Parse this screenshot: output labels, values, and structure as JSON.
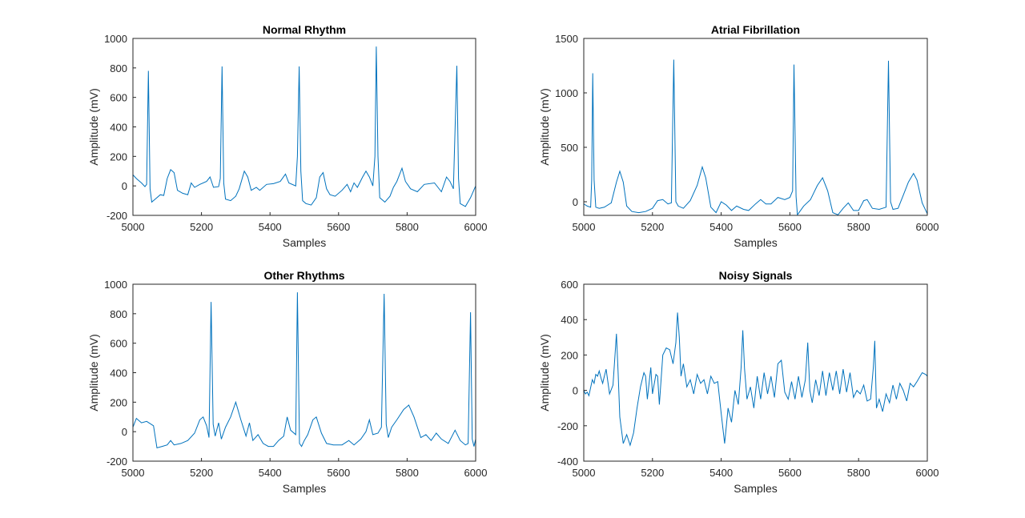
{
  "chart_data": [
    {
      "type": "line",
      "title": "Normal Rhythm",
      "x_label": "Samples",
      "y_label": "Amplitude (mV)",
      "color": "#0072bd",
      "xlim": [
        5000,
        6000
      ],
      "xticks": [
        5000,
        5200,
        5400,
        5600,
        5800,
        6000
      ],
      "ylim": [
        -200,
        1000
      ],
      "yticks": [
        -200,
        0,
        200,
        400,
        600,
        800,
        1000
      ],
      "x": [
        5000,
        5010,
        5025,
        5035,
        5040,
        5045,
        5050,
        5055,
        5065,
        5080,
        5090,
        5100,
        5110,
        5120,
        5130,
        5145,
        5160,
        5170,
        5180,
        5195,
        5215,
        5225,
        5235,
        5250,
        5255,
        5260,
        5265,
        5270,
        5285,
        5300,
        5310,
        5325,
        5335,
        5345,
        5360,
        5370,
        5390,
        5410,
        5430,
        5445,
        5455,
        5475,
        5480,
        5485,
        5490,
        5495,
        5505,
        5520,
        5535,
        5545,
        5555,
        5565,
        5575,
        5590,
        5610,
        5625,
        5635,
        5645,
        5655,
        5670,
        5680,
        5690,
        5700,
        5706,
        5710,
        5715,
        5720,
        5735,
        5750,
        5760,
        5770,
        5785,
        5795,
        5810,
        5830,
        5850,
        5880,
        5900,
        5915,
        5925,
        5935,
        5945,
        5950,
        5955,
        5970,
        5985,
        6000
      ],
      "values": [
        75,
        50,
        20,
        -5,
        10,
        780,
        -20,
        -110,
        -90,
        -60,
        -65,
        50,
        110,
        90,
        -30,
        -50,
        -60,
        20,
        -10,
        10,
        30,
        60,
        -10,
        -5,
        50,
        810,
        20,
        -90,
        -100,
        -70,
        -20,
        100,
        60,
        -30,
        -10,
        -30,
        10,
        15,
        30,
        80,
        20,
        0,
        200,
        810,
        100,
        -100,
        -120,
        -130,
        -80,
        60,
        90,
        -20,
        -60,
        -70,
        -30,
        10,
        -40,
        20,
        -10,
        60,
        100,
        60,
        0,
        200,
        945,
        200,
        -80,
        -110,
        -70,
        -10,
        30,
        120,
        30,
        -20,
        -40,
        10,
        20,
        -40,
        60,
        30,
        -20,
        815,
        50,
        -120,
        -140,
        -80,
        0
      ]
    },
    {
      "type": "line",
      "title": "Atrial Fibrillation",
      "x_label": "Samples",
      "y_label": "Amplitude (mV)",
      "color": "#0072bd",
      "xlim": [
        5000,
        6000
      ],
      "xticks": [
        5000,
        5200,
        5400,
        5600,
        5800,
        6000
      ],
      "ylim": [
        -125,
        1500
      ],
      "yticks": [
        0,
        500,
        1000,
        1500
      ],
      "x": [
        5000,
        5010,
        5020,
        5023,
        5026,
        5030,
        5035,
        5045,
        5060,
        5080,
        5095,
        5105,
        5115,
        5125,
        5140,
        5160,
        5180,
        5200,
        5215,
        5230,
        5245,
        5255,
        5262,
        5268,
        5275,
        5290,
        5310,
        5330,
        5345,
        5355,
        5370,
        5385,
        5400,
        5415,
        5430,
        5445,
        5465,
        5480,
        5500,
        5515,
        5530,
        5545,
        5565,
        5585,
        5600,
        5608,
        5612,
        5618,
        5622,
        5640,
        5660,
        5680,
        5695,
        5710,
        5725,
        5740,
        5755,
        5770,
        5785,
        5800,
        5815,
        5825,
        5840,
        5860,
        5880,
        5887,
        5893,
        5900,
        5915,
        5930,
        5945,
        5960,
        5970,
        5985,
        6000
      ],
      "values": [
        -20,
        -40,
        -50,
        200,
        1180,
        200,
        -50,
        -60,
        -50,
        -10,
        180,
        280,
        180,
        -40,
        -90,
        -100,
        -90,
        -60,
        10,
        20,
        -20,
        -10,
        1305,
        0,
        -40,
        -60,
        10,
        150,
        320,
        220,
        -50,
        -100,
        0,
        -30,
        -80,
        -40,
        -70,
        -80,
        -20,
        20,
        -20,
        -20,
        40,
        20,
        40,
        100,
        1260,
        50,
        -120,
        -40,
        20,
        150,
        220,
        100,
        -100,
        -120,
        -60,
        -10,
        -80,
        -80,
        10,
        20,
        -60,
        -70,
        -50,
        1295,
        0,
        -70,
        -60,
        60,
        180,
        260,
        200,
        -10,
        -110
      ]
    },
    {
      "type": "line",
      "title": "Other Rhythms",
      "x_label": "Samples",
      "y_label": "Amplitude (mV)",
      "color": "#0072bd",
      "xlim": [
        5000,
        6000
      ],
      "xticks": [
        5000,
        5200,
        5400,
        5600,
        5800,
        6000
      ],
      "ylim": [
        -200,
        1000
      ],
      "yticks": [
        -200,
        0,
        200,
        400,
        600,
        800,
        1000
      ],
      "x": [
        5000,
        5010,
        5025,
        5040,
        5060,
        5070,
        5085,
        5100,
        5110,
        5120,
        5140,
        5160,
        5180,
        5195,
        5205,
        5215,
        5222,
        5228,
        5234,
        5240,
        5250,
        5258,
        5270,
        5285,
        5300,
        5315,
        5330,
        5340,
        5350,
        5365,
        5380,
        5395,
        5410,
        5425,
        5440,
        5450,
        5460,
        5475,
        5480,
        5486,
        5492,
        5500,
        5510,
        5525,
        5535,
        5550,
        5565,
        5585,
        5610,
        5630,
        5645,
        5665,
        5680,
        5690,
        5700,
        5715,
        5725,
        5733,
        5739,
        5745,
        5755,
        5770,
        5790,
        5805,
        5820,
        5840,
        5855,
        5870,
        5885,
        5900,
        5920,
        5940,
        5955,
        5970,
        5978,
        5985,
        5990,
        5995,
        6000
      ],
      "values": [
        30,
        90,
        60,
        70,
        40,
        -110,
        -100,
        -90,
        -60,
        -90,
        -80,
        -60,
        -10,
        80,
        100,
        40,
        -40,
        880,
        50,
        -30,
        60,
        -50,
        30,
        100,
        200,
        80,
        -30,
        60,
        -60,
        -20,
        -80,
        -100,
        -100,
        -60,
        -30,
        100,
        10,
        -20,
        945,
        -80,
        -100,
        -60,
        -20,
        80,
        100,
        -10,
        -80,
        -90,
        -90,
        -60,
        -90,
        -50,
        0,
        80,
        -20,
        -10,
        30,
        935,
        50,
        -40,
        30,
        80,
        150,
        180,
        100,
        -40,
        -20,
        -60,
        -10,
        -50,
        -80,
        10,
        -60,
        -90,
        -80,
        810,
        -50,
        -100,
        -50
      ]
    },
    {
      "type": "line",
      "title": "Noisy Signals",
      "x_label": "Samples",
      "y_label": "Amplitude (mV)",
      "color": "#0072bd",
      "xlim": [
        5000,
        6000
      ],
      "xticks": [
        5000,
        5200,
        5400,
        5600,
        5800,
        6000
      ],
      "ylim": [
        -400,
        600
      ],
      "yticks": [
        -400,
        -200,
        0,
        200,
        400,
        600
      ],
      "x": [
        5000,
        5005,
        5010,
        5015,
        5025,
        5030,
        5035,
        5040,
        5045,
        5050,
        5055,
        5060,
        5065,
        5075,
        5085,
        5095,
        5100,
        5105,
        5115,
        5125,
        5135,
        5145,
        5155,
        5165,
        5175,
        5180,
        5185,
        5195,
        5200,
        5210,
        5215,
        5220,
        5230,
        5240,
        5250,
        5260,
        5268,
        5273,
        5278,
        5283,
        5290,
        5300,
        5310,
        5320,
        5330,
        5340,
        5350,
        5360,
        5370,
        5380,
        5390,
        5400,
        5410,
        5420,
        5430,
        5440,
        5450,
        5458,
        5463,
        5468,
        5475,
        5485,
        5495,
        5505,
        5515,
        5525,
        5535,
        5545,
        5555,
        5565,
        5575,
        5585,
        5595,
        5605,
        5615,
        5625,
        5635,
        5645,
        5652,
        5658,
        5665,
        5675,
        5685,
        5695,
        5705,
        5715,
        5725,
        5735,
        5745,
        5755,
        5765,
        5775,
        5785,
        5795,
        5805,
        5815,
        5825,
        5835,
        5843,
        5847,
        5852,
        5860,
        5870,
        5880,
        5890,
        5900,
        5910,
        5920,
        5930,
        5940,
        5950,
        5960,
        5970,
        5985,
        5995,
        6000
      ],
      "values": [
        0,
        -20,
        -10,
        -30,
        60,
        40,
        90,
        80,
        110,
        70,
        40,
        80,
        120,
        -20,
        30,
        320,
        100,
        -150,
        -300,
        -250,
        -310,
        -240,
        -100,
        20,
        100,
        80,
        -50,
        130,
        -20,
        90,
        80,
        -80,
        200,
        240,
        230,
        150,
        270,
        440,
        300,
        80,
        150,
        20,
        60,
        -20,
        90,
        40,
        60,
        -20,
        80,
        40,
        50,
        -130,
        -300,
        -100,
        -180,
        0,
        -80,
        130,
        340,
        120,
        -50,
        20,
        -100,
        80,
        -50,
        100,
        -20,
        80,
        -40,
        150,
        170,
        -10,
        -50,
        50,
        -50,
        80,
        -40,
        60,
        270,
        0,
        -70,
        60,
        -30,
        110,
        -30,
        100,
        0,
        110,
        -20,
        120,
        -10,
        100,
        -40,
        0,
        -20,
        30,
        -60,
        -50,
        130,
        280,
        -100,
        -50,
        -120,
        -20,
        -70,
        30,
        -50,
        40,
        0,
        -60,
        40,
        20,
        50,
        100,
        90,
        80
      ]
    }
  ]
}
